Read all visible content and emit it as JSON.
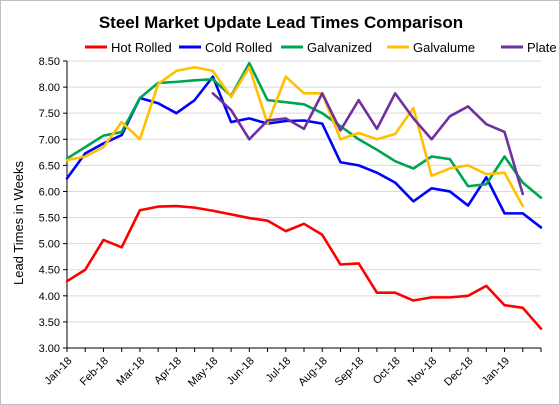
{
  "chart_data": {
    "type": "line",
    "title": "Steel Market Update Lead Times Comparison",
    "ylabel": "Lead Times in Weeks",
    "xlabel": "",
    "ylim": [
      3.0,
      8.5
    ],
    "yticks": [
      "3.00",
      "3.50",
      "4.00",
      "4.50",
      "5.00",
      "5.50",
      "6.00",
      "6.50",
      "7.00",
      "7.50",
      "8.00",
      "8.50"
    ],
    "grid": true,
    "legend_position": "top",
    "x_tick_labels": [
      "Jan-18",
      "Feb-18",
      "Mar-18",
      "Apr-18",
      "May-18",
      "Jun-18",
      "Jul-18",
      "Aug-18",
      "Sep-18",
      "Oct-18",
      "Nov-18",
      "Dec-18",
      "Jan-19"
    ],
    "points_per_month": 2,
    "series": [
      {
        "name": "Hot Rolled",
        "color": "#ff0000",
        "values": [
          4.28,
          4.5,
          5.07,
          4.93,
          5.64,
          5.71,
          5.72,
          5.69,
          5.63,
          5.56,
          5.49,
          5.44,
          5.24,
          5.38,
          5.17,
          4.6,
          4.62,
          4.06,
          4.06,
          3.91,
          3.97,
          3.97,
          4.0,
          4.19,
          3.82,
          3.77,
          3.37
        ]
      },
      {
        "name": "Cold Rolled",
        "color": "#0000ff",
        "values": [
          6.25,
          6.73,
          6.92,
          7.08,
          7.79,
          7.69,
          7.5,
          7.75,
          8.2,
          7.33,
          7.4,
          7.3,
          7.35,
          7.36,
          7.3,
          6.56,
          6.5,
          6.36,
          6.17,
          5.81,
          6.06,
          6.0,
          5.73,
          6.27,
          5.58,
          5.58,
          5.31
        ]
      },
      {
        "name": "Galvanized",
        "color": "#00a550",
        "values": [
          6.63,
          6.85,
          7.07,
          7.14,
          7.79,
          8.08,
          8.1,
          8.13,
          8.15,
          7.83,
          8.46,
          7.75,
          7.71,
          7.67,
          7.5,
          7.25,
          7.0,
          6.8,
          6.58,
          6.44,
          6.67,
          6.62,
          6.1,
          6.14,
          6.67,
          6.17,
          5.88
        ]
      },
      {
        "name": "Galvalume",
        "color": "#ffc000",
        "values": [
          6.6,
          6.67,
          6.85,
          7.33,
          7.0,
          8.06,
          8.31,
          8.38,
          8.31,
          7.81,
          8.38,
          7.3,
          8.2,
          7.88,
          7.88,
          7.0,
          7.12,
          7.0,
          7.1,
          7.6,
          6.3,
          6.44,
          6.5,
          6.33,
          6.36,
          5.72
        ]
      },
      {
        "name": "Plate",
        "color": "#7030a0",
        "offset": 8,
        "values": [
          7.88,
          7.56,
          7.0,
          7.36,
          7.4,
          7.2,
          7.88,
          7.17,
          7.75,
          7.2,
          7.88,
          7.4,
          7.0,
          7.44,
          7.63,
          7.29,
          7.14,
          5.95
        ]
      }
    ]
  }
}
